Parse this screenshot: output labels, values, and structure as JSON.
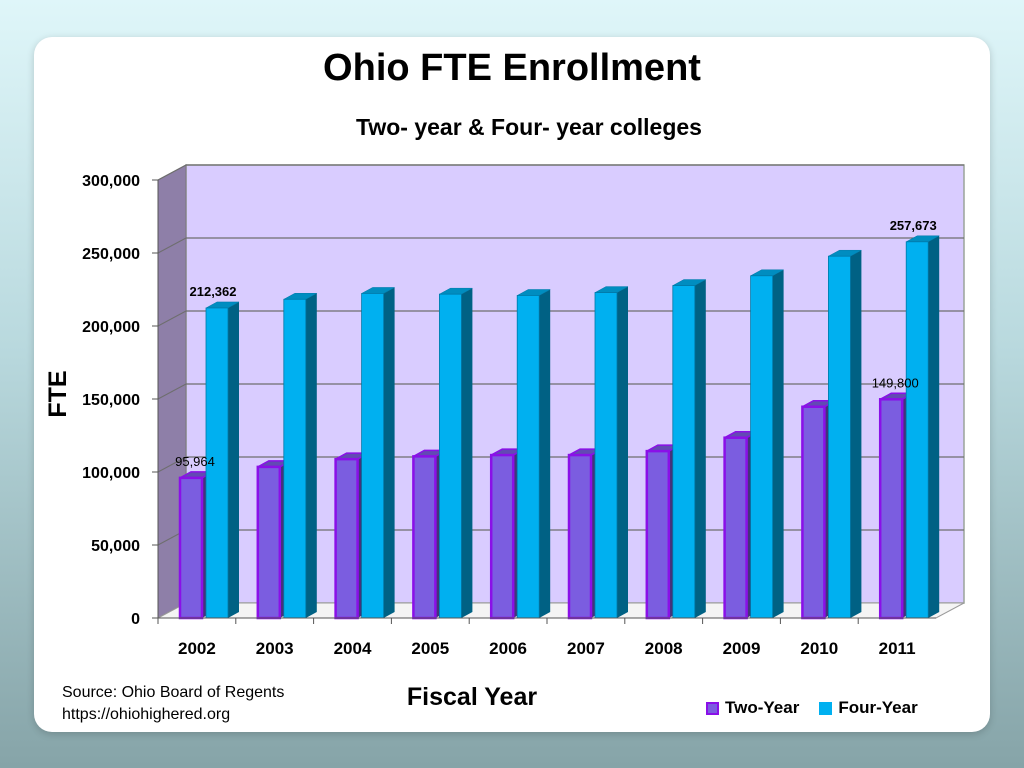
{
  "source": {
    "line1": "Source: Ohio Board of Regents",
    "line2": "https://ohiohighered.org"
  },
  "chart_data": {
    "type": "bar",
    "title": "Ohio FTE Enrollment",
    "subtitle": "Two- year & Four- year colleges",
    "xlabel": "Fiscal Year",
    "ylabel": "FTE",
    "categories": [
      "2002",
      "2003",
      "2004",
      "2005",
      "2006",
      "2007",
      "2008",
      "2009",
      "2010",
      "2011"
    ],
    "series": [
      {
        "name": "Two-Year",
        "color": "#7b5de0",
        "border": "#8a10e8",
        "values": [
          95964,
          103500,
          108800,
          110700,
          111600,
          111600,
          114300,
          123500,
          144700,
          149800
        ]
      },
      {
        "name": "Four-Year",
        "color": "#00b0f0",
        "border": "#0079a8",
        "values": [
          212362,
          218300,
          222300,
          221800,
          220900,
          222900,
          227700,
          234400,
          247800,
          257673
        ]
      }
    ],
    "ylim": [
      0,
      300000
    ],
    "yticks": [
      "0",
      "50,000",
      "100,000",
      "150,000",
      "200,000",
      "250,000",
      "300,000"
    ],
    "data_labels": [
      {
        "series": 0,
        "index": 0,
        "text": "95,964"
      },
      {
        "series": 1,
        "index": 0,
        "text": "212,362"
      },
      {
        "series": 0,
        "index": 9,
        "text": "149,800"
      },
      {
        "series": 1,
        "index": 9,
        "text": "257,673"
      }
    ],
    "plot_background": "#d9ccff",
    "grid": true,
    "legend_position": "bottom-right"
  }
}
